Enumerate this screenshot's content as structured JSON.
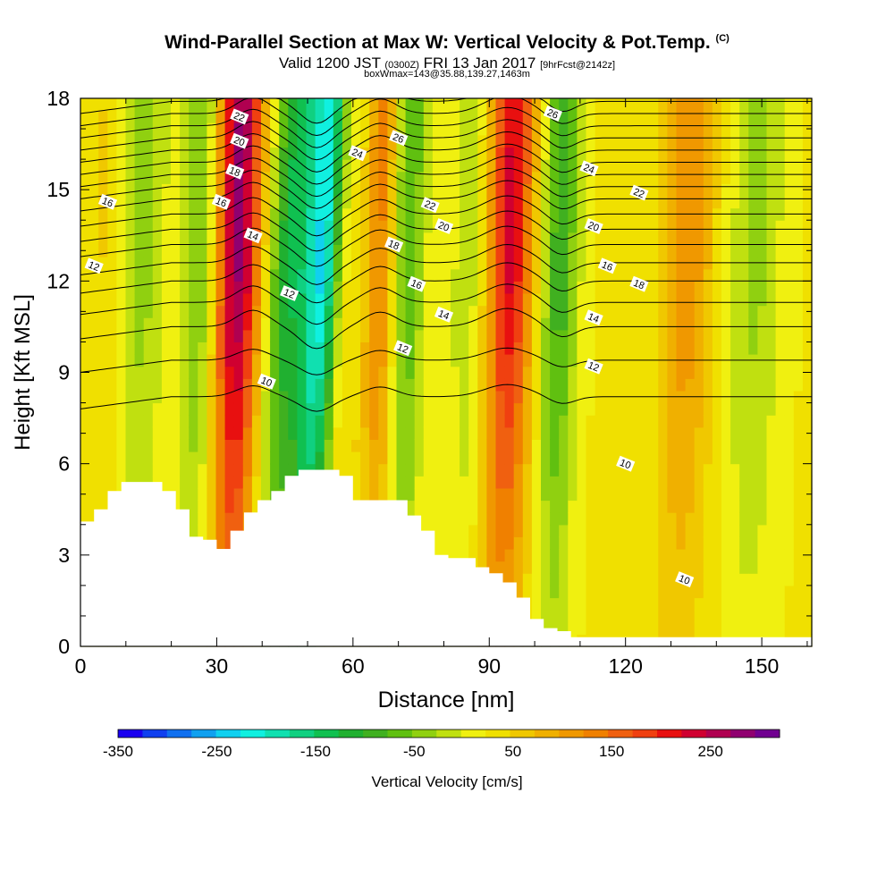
{
  "title": {
    "main": "Wind-Parallel Section at Max W: Vertical Velocity & Pot.Temp.",
    "copyright": "(C)",
    "valid_prefix": "Valid 1200 JST",
    "valid_utc": "(0300Z)",
    "valid_date": "FRI 13 Jan 2017",
    "forecast": "[9hrFcst@2142z]",
    "boxinfo": "boxWmax=143@35.88,139.27,1463m"
  },
  "colors": {
    "background": "#ffffff",
    "terrain": "#ffffff",
    "contour": "#000000"
  },
  "chart_data": {
    "type": "heatmap",
    "xlabel": "Distance [nm]",
    "ylabel": "Height [Kft MSL]",
    "xlim": [
      0,
      161
    ],
    "ylim": [
      0,
      18
    ],
    "x_ticks": [
      0,
      30,
      60,
      90,
      120,
      150
    ],
    "y_ticks": [
      0,
      3,
      6,
      9,
      12,
      15,
      18
    ],
    "colorbar": {
      "label": "Vertical Velocity [cm/s]",
      "tick_labels": [
        "-350",
        "-250",
        "-150",
        "-50",
        "50",
        "150",
        "250"
      ],
      "tick_values": [
        -350,
        -250,
        -150,
        -50,
        50,
        150,
        250
      ],
      "range": [
        -350,
        320
      ],
      "colors": [
        "#1a00f0",
        "#1040f0",
        "#1070f0",
        "#10a0f0",
        "#10d0f0",
        "#10f0e0",
        "#10e0b0",
        "#10d080",
        "#10c050",
        "#20b030",
        "#40b020",
        "#60c010",
        "#90d010",
        "#c0e010",
        "#f0f010",
        "#f0e000",
        "#f0c800",
        "#f0b000",
        "#f09800",
        "#f08000",
        "#f06010",
        "#f04010",
        "#e81010",
        "#d00030",
        "#b00050",
        "#900070",
        "#700090"
      ]
    },
    "terrain_profile": {
      "x": [
        0,
        3,
        6,
        9,
        12,
        15,
        18,
        21,
        24,
        27,
        30,
        33,
        36,
        39,
        42,
        45,
        48,
        51,
        54,
        57,
        60,
        63,
        66,
        69,
        72,
        75,
        78,
        81,
        84,
        87,
        90,
        93,
        96,
        99,
        102,
        105,
        108,
        111,
        114,
        117,
        120,
        123,
        126,
        129,
        132,
        135,
        138,
        141,
        144,
        147,
        150,
        153,
        156,
        159,
        161
      ],
      "height": [
        4.1,
        4.5,
        5.1,
        5.4,
        5.4,
        5.4,
        5.1,
        4.5,
        3.6,
        3.5,
        3.2,
        3.8,
        4.4,
        4.8,
        5.1,
        5.6,
        5.8,
        5.8,
        5.8,
        5.6,
        4.8,
        4.8,
        4.8,
        4.8,
        4.3,
        3.8,
        3.0,
        2.9,
        2.9,
        2.6,
        2.4,
        2.1,
        1.6,
        0.9,
        0.6,
        0.5,
        0.3,
        0.3,
        0.3,
        0.3,
        0.3,
        0.3,
        0.3,
        0.3,
        0.3,
        0.3,
        0.3,
        0.3,
        0.3,
        0.3,
        0.3,
        0.3,
        0.3,
        0.3,
        0.3
      ]
    },
    "w_bands": [
      {
        "x": 34,
        "w": 250,
        "width": 5
      },
      {
        "x": 52,
        "w": -260,
        "width": 5
      },
      {
        "x": 44,
        "w": -130,
        "width": 4
      },
      {
        "x": 66,
        "w": 120,
        "width": 4
      },
      {
        "x": 71,
        "w": -120,
        "width": 4
      },
      {
        "x": 94,
        "w": 200,
        "width": 5
      },
      {
        "x": 105,
        "w": -120,
        "width": 4
      },
      {
        "x": 26,
        "w": -90,
        "width": 4
      },
      {
        "x": 12,
        "w": -70,
        "width": 6
      },
      {
        "x": 133,
        "w": 90,
        "width": 6
      },
      {
        "x": 148,
        "w": -60,
        "width": 6
      },
      {
        "x": 85,
        "w": -50,
        "width": 4
      },
      {
        "x": 6,
        "w": 40,
        "width": 5
      },
      {
        "x": 57,
        "w": 80,
        "width": 3
      }
    ],
    "theta_contours": [
      {
        "level": 10,
        "base": 8.2
      },
      {
        "level": 11,
        "base": 9.4
      },
      {
        "level": 12,
        "base": 10.5
      },
      {
        "level": 13,
        "base": 11.3
      },
      {
        "level": 14,
        "base": 12.0
      },
      {
        "level": 15,
        "base": 12.6
      },
      {
        "level": 16,
        "base": 13.2
      },
      {
        "level": 17,
        "base": 13.7
      },
      {
        "level": 18,
        "base": 14.2
      },
      {
        "level": 19,
        "base": 14.7
      },
      {
        "level": 20,
        "base": 15.1
      },
      {
        "level": 21,
        "base": 15.5
      },
      {
        "level": 22,
        "base": 15.9
      },
      {
        "level": 23,
        "base": 16.3
      },
      {
        "level": 24,
        "base": 16.7
      },
      {
        "level": 25,
        "base": 17.1
      },
      {
        "level": 26,
        "base": 17.5
      },
      {
        "level": 27,
        "base": 17.9
      }
    ],
    "contour_labels": [
      {
        "text": "22",
        "x": 35,
        "y": 17.4
      },
      {
        "text": "20",
        "x": 35,
        "y": 16.6
      },
      {
        "text": "18",
        "x": 34,
        "y": 15.6
      },
      {
        "text": "16",
        "x": 31,
        "y": 14.6
      },
      {
        "text": "14",
        "x": 38,
        "y": 13.5
      },
      {
        "text": "12",
        "x": 46,
        "y": 11.6
      },
      {
        "text": "10",
        "x": 41,
        "y": 8.7
      },
      {
        "text": "16",
        "x": 6,
        "y": 14.6
      },
      {
        "text": "12",
        "x": 3,
        "y": 12.5
      },
      {
        "text": "24",
        "x": 61,
        "y": 16.2
      },
      {
        "text": "26",
        "x": 70,
        "y": 16.7
      },
      {
        "text": "22",
        "x": 77,
        "y": 14.5
      },
      {
        "text": "20",
        "x": 80,
        "y": 13.8
      },
      {
        "text": "18",
        "x": 69,
        "y": 13.2
      },
      {
        "text": "16",
        "x": 74,
        "y": 11.9
      },
      {
        "text": "14",
        "x": 80,
        "y": 10.9
      },
      {
        "text": "12",
        "x": 71,
        "y": 9.8
      },
      {
        "text": "26",
        "x": 104,
        "y": 17.5
      },
      {
        "text": "24",
        "x": 112,
        "y": 15.7
      },
      {
        "text": "22",
        "x": 123,
        "y": 14.9
      },
      {
        "text": "20",
        "x": 113,
        "y": 13.8
      },
      {
        "text": "16",
        "x": 116,
        "y": 12.5
      },
      {
        "text": "18",
        "x": 123,
        "y": 11.9
      },
      {
        "text": "14",
        "x": 113,
        "y": 10.8
      },
      {
        "text": "12",
        "x": 113,
        "y": 9.2
      },
      {
        "text": "10",
        "x": 120,
        "y": 6.0
      },
      {
        "text": "10",
        "x": 133,
        "y": 2.2
      }
    ]
  }
}
